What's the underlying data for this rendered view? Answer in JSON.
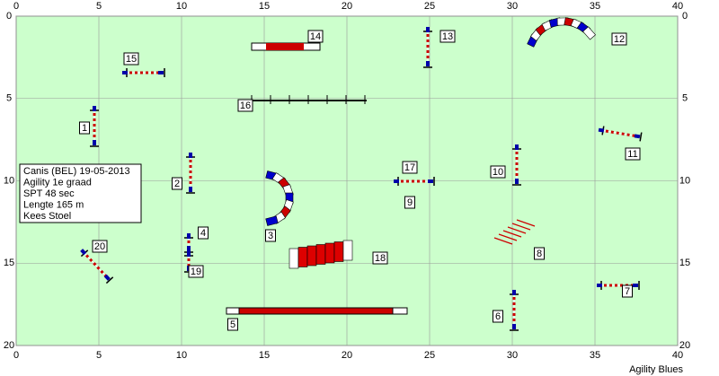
{
  "axes": {
    "xticks": [
      0,
      5,
      10,
      15,
      20,
      25,
      30,
      35,
      40
    ],
    "yticks": [
      0,
      5,
      10,
      15,
      20
    ]
  },
  "info": {
    "lines": [
      "Canis  (BEL) 19-05-2013",
      "Agility 1e graad",
      "SPT 48 sec",
      "Lengte 165 m",
      "Kees Stoel"
    ]
  },
  "obstacles": [
    {
      "label": "1"
    },
    {
      "label": "2"
    },
    {
      "label": "3"
    },
    {
      "label": "4"
    },
    {
      "label": "5"
    },
    {
      "label": "6"
    },
    {
      "label": "7"
    },
    {
      "label": "8"
    },
    {
      "label": "9"
    },
    {
      "label": "10"
    },
    {
      "label": "11"
    },
    {
      "label": "12"
    },
    {
      "label": "13"
    },
    {
      "label": "14"
    },
    {
      "label": "15"
    },
    {
      "label": "16"
    },
    {
      "label": "17"
    },
    {
      "label": "18"
    },
    {
      "label": "19"
    },
    {
      "label": "20"
    }
  ],
  "footer": "Agility Blues"
}
